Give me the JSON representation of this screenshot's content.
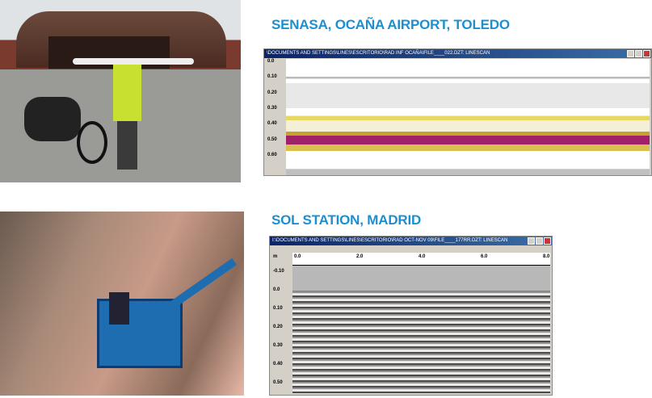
{
  "sections": [
    {
      "heading": "SENASA, OCAÑA AIRPORT, TOLEDO",
      "window": {
        "title": "\\DOCUMENTS AND SETTINGS\\LINES\\ESCRITORIO\\RAD INF OCAÑA\\FILE____022.DZT:  LINESCAN",
        "y_labels": [
          "0.0",
          "0.10",
          "0.20",
          "0.30",
          "0.40",
          "0.50",
          "0.60"
        ]
      }
    },
    {
      "heading": "SOL STATION, MADRID",
      "window": {
        "title": "I:\\DOCUMENTS AND SETTINGS\\LINES\\ESCRITORIO\\RAD OCT-NOV 09\\FILE____177RR.DZT:  LINESCAN",
        "unit": "m",
        "x_labels": [
          "0.0",
          "2.0",
          "4.0",
          "6.0",
          "8.0"
        ],
        "y_labels": [
          "-0.10",
          "0.0",
          "0.10",
          "0.20",
          "0.30",
          "0.40",
          "0.50"
        ]
      }
    }
  ]
}
